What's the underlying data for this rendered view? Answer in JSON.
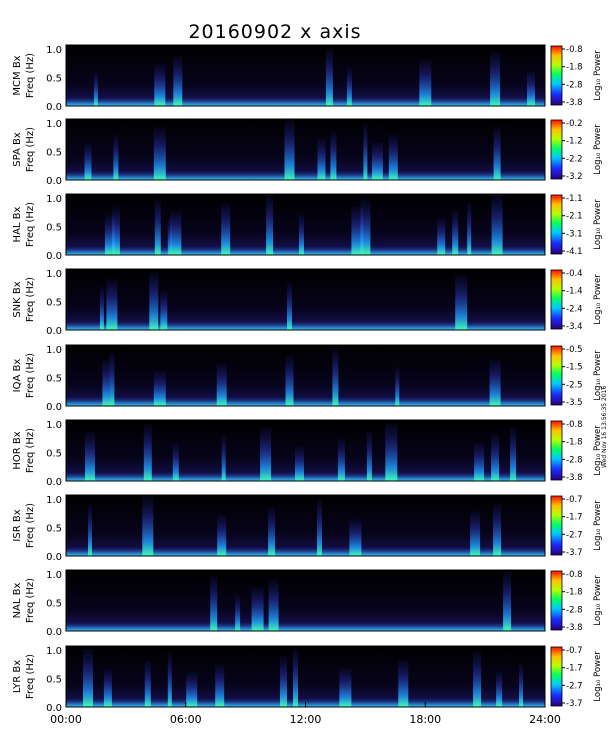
{
  "title": "20160902  x axis",
  "side_note": "Wed Nov 16 13:56:35 2016",
  "colorbar_label": "Log₁₀ Power",
  "chart_data": {
    "type": "heatmap",
    "x_ticks": [
      "00:00",
      "06:00",
      "12:00",
      "18:00",
      "24:00"
    ],
    "xlim_hours": [
      0,
      24
    ],
    "y_ticks": [
      "0.0",
      "0.5",
      "1.0"
    ],
    "ylim_hz": [
      0,
      1.0
    ],
    "panels": [
      {
        "station": "MCM",
        "component": "Bx",
        "ylabel_top": "MCM Bx",
        "ylabel_bottom": "Freq (Hz)",
        "cbar_ticks": [
          "-0.8",
          "-1.8",
          "-2.8",
          "-3.8"
        ],
        "clim": [
          -3.8,
          -0.8
        ],
        "bursts_hours": [
          1.5,
          4.7,
          5.6,
          13.2,
          14.2,
          18.0,
          21.5,
          23.3
        ]
      },
      {
        "station": "SPA",
        "component": "Bx",
        "ylabel_top": "SPA Bx",
        "ylabel_bottom": "Freq (Hz)",
        "cbar_ticks": [
          "-0.2",
          "-1.2",
          "-2.2",
          "-3.2"
        ],
        "clim": [
          -3.2,
          -0.2
        ],
        "bursts_hours": [
          1.1,
          2.5,
          4.7,
          11.2,
          12.8,
          13.4,
          15.0,
          15.6,
          16.4,
          21.6
        ]
      },
      {
        "station": "HAL",
        "component": "Bx",
        "ylabel_top": "HAL Bx",
        "ylabel_bottom": "Freq (Hz)",
        "cbar_ticks": [
          "-1.1",
          "-2.1",
          "-3.1",
          "-4.1"
        ],
        "clim": [
          -4.1,
          -1.1
        ],
        "bursts_hours": [
          2.2,
          2.5,
          4.6,
          5.2,
          5.5,
          8.0,
          10.2,
          11.8,
          14.6,
          15.0,
          18.8,
          19.5,
          20.2,
          21.6
        ]
      },
      {
        "station": "SNK",
        "component": "Bx",
        "ylabel_top": "SNK Bx",
        "ylabel_bottom": "Freq (Hz)",
        "cbar_ticks": [
          "-0.4",
          "-1.4",
          "-2.4",
          "-3.4"
        ],
        "clim": [
          -3.4,
          -0.4
        ],
        "bursts_hours": [
          1.8,
          2.3,
          4.4,
          4.9,
          11.2,
          19.8
        ]
      },
      {
        "station": "IQA",
        "component": "Bx",
        "ylabel_top": "IQA Bx",
        "ylabel_bottom": "Freq (Hz)",
        "cbar_ticks": [
          "-0.5",
          "-1.5",
          "-2.5",
          "-3.5"
        ],
        "clim": [
          -3.5,
          -0.5
        ],
        "bursts_hours": [
          2.0,
          2.3,
          4.7,
          7.8,
          11.2,
          13.5,
          16.6,
          21.5
        ]
      },
      {
        "station": "HOR",
        "component": "Bx",
        "ylabel_top": "HOR Bx",
        "ylabel_bottom": "Freq (Hz)",
        "cbar_ticks": [
          "-0.8",
          "-1.8",
          "-2.8",
          "-3.8"
        ],
        "clim": [
          -3.8,
          -0.8
        ],
        "bursts_hours": [
          1.2,
          4.1,
          5.5,
          7.9,
          10.0,
          11.7,
          13.8,
          15.2,
          16.3,
          20.7,
          21.5,
          22.4
        ]
      },
      {
        "station": "ISR",
        "component": "Bx",
        "ylabel_top": "ISR Bx",
        "ylabel_bottom": "Freq (Hz)",
        "cbar_ticks": [
          "-0.7",
          "-1.7",
          "-2.7",
          "-3.7"
        ],
        "clim": [
          -3.7,
          -0.7
        ],
        "bursts_hours": [
          1.2,
          4.1,
          7.8,
          10.3,
          12.7,
          14.5,
          20.5,
          21.6
        ]
      },
      {
        "station": "NAL",
        "component": "Bx",
        "ylabel_top": "NAL Bx",
        "ylabel_bottom": "Freq (Hz)",
        "cbar_ticks": [
          "-0.8",
          "-1.8",
          "-2.8",
          "-3.8"
        ],
        "clim": [
          -3.8,
          -0.8
        ],
        "bursts_hours": [
          7.4,
          8.6,
          9.6,
          10.4,
          22.1
        ]
      },
      {
        "station": "LYR",
        "component": "Bx",
        "ylabel_top": "LYR Bx",
        "ylabel_bottom": "Freq (Hz)",
        "cbar_ticks": [
          "-0.7",
          "-1.7",
          "-2.7",
          "-3.7"
        ],
        "clim": [
          -3.7,
          -0.7
        ],
        "bursts_hours": [
          1.1,
          2.1,
          4.1,
          5.2,
          6.3,
          7.7,
          10.9,
          11.5,
          14.0,
          16.9,
          20.6,
          21.7,
          22.8
        ]
      }
    ]
  }
}
